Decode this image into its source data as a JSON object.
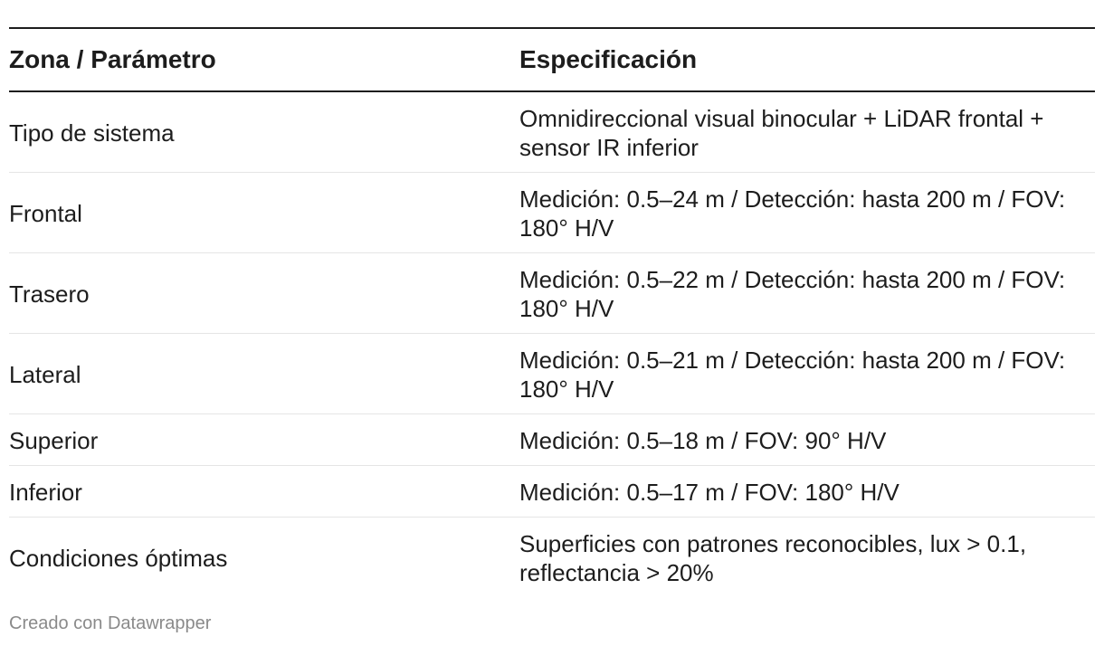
{
  "table": {
    "headers": [
      "Zona / Parámetro",
      "Especificación"
    ],
    "rows": [
      [
        "Tipo de sistema",
        "Omnidireccional visual binocular + LiDAR frontal + sensor IR inferior"
      ],
      [
        "Frontal",
        "Medición: 0.5–24 m / Detección: hasta 200 m / FOV: 180° H/V"
      ],
      [
        "Trasero",
        "Medición: 0.5–22 m / Detección: hasta 200 m / FOV: 180° H/V"
      ],
      [
        "Lateral",
        "Medición: 0.5–21 m / Detección: hasta 200 m / FOV: 180° H/V"
      ],
      [
        "Superior",
        "Medición: 0.5–18 m / FOV: 90° H/V"
      ],
      [
        "Inferior",
        "Medición: 0.5–17 m / FOV: 180° H/V"
      ],
      [
        "Condiciones óptimas",
        "Superficies con patrones reconocibles, lux > 0.1, reflectancia > 20%"
      ]
    ]
  },
  "footer": {
    "credit": "Creado con Datawrapper"
  }
}
